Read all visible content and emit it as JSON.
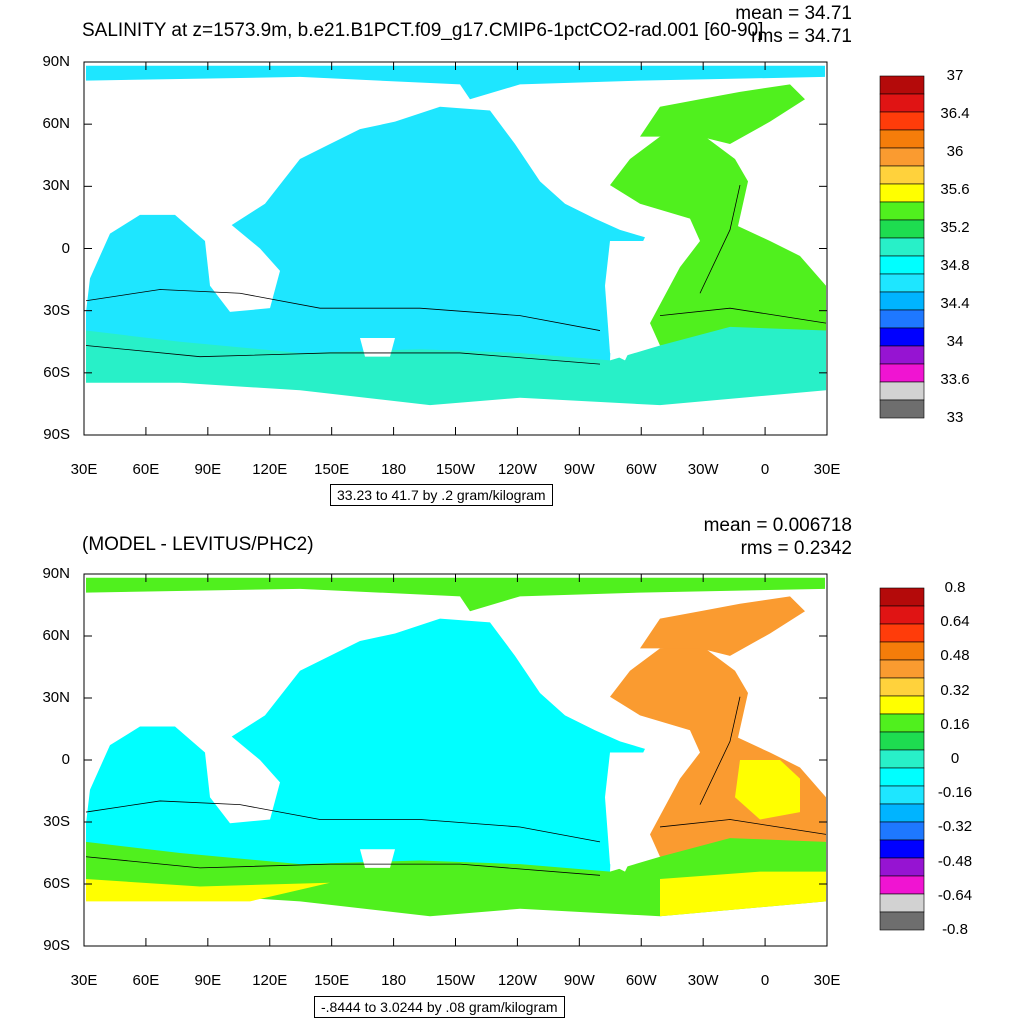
{
  "panels": [
    {
      "title": "SALINITY at z=1573.9m, b.e21.B1PCT.f09_g17.CMIP6-1pctCO2-rad.001 [60-90]",
      "stats": {
        "mean": "mean = 34.71",
        "rms": "rms = 34.71"
      },
      "range_label": "33.23 to 41.7 by .2 gram/kilogram",
      "colorbar": {
        "labels": [
          "37",
          "36.4",
          "36",
          "35.6",
          "35.2",
          "34.8",
          "34.4",
          "34",
          "33.6",
          "33"
        ],
        "colors": [
          "#b40a0a",
          "#e01414",
          "#ff3c0a",
          "#f57d0a",
          "#fa9b30",
          "#ffd23c",
          "#ffff00",
          "#50f01e",
          "#1edc50",
          "#28f0c8",
          "#00ffff",
          "#1ee6ff",
          "#00b4ff",
          "#1e78ff",
          "#0000ff",
          "#9614d2",
          "#f014d2",
          "#d2d2d2",
          "#6e6e6e"
        ]
      }
    },
    {
      "title": "(MODEL - LEVITUS/PHC2)",
      "stats": {
        "mean": "mean = 0.006718",
        "rms": "rms = 0.2342"
      },
      "range_label": "-.8444 to 3.0244 by .08 gram/kilogram",
      "colorbar": {
        "labels": [
          "0.8",
          "0.64",
          "0.48",
          "0.32",
          "0.16",
          "0",
          "-0.16",
          "-0.32",
          "-0.48",
          "-0.64",
          "-0.8"
        ],
        "colors": [
          "#b40a0a",
          "#e01414",
          "#ff3c0a",
          "#f57d0a",
          "#fa9b30",
          "#ffd23c",
          "#ffff00",
          "#50f01e",
          "#1edc50",
          "#28f0c8",
          "#00ffff",
          "#1ee6ff",
          "#00b4ff",
          "#1e78ff",
          "#0000ff",
          "#9614d2",
          "#f014d2",
          "#d2d2d2",
          "#6e6e6e"
        ]
      }
    }
  ],
  "axes": {
    "y_labels": [
      "90N",
      "60N",
      "30N",
      "0",
      "30S",
      "60S",
      "90S"
    ],
    "x_labels": [
      "30E",
      "60E",
      "90E",
      "120E",
      "150E",
      "180",
      "150W",
      "120W",
      "90W",
      "60W",
      "30W",
      "0",
      "30E"
    ]
  },
  "map_colors": {
    "ocean_top": "#1ee6ff",
    "southern_top": "#28f0c8",
    "atlantic_top": "#50f01e",
    "ocean_bottom": "#00ffff",
    "southern_bottom": "#50f01e",
    "atlantic_bottom": "#fa9b30",
    "yellow": "#ffff00",
    "land": "#ffffff"
  }
}
